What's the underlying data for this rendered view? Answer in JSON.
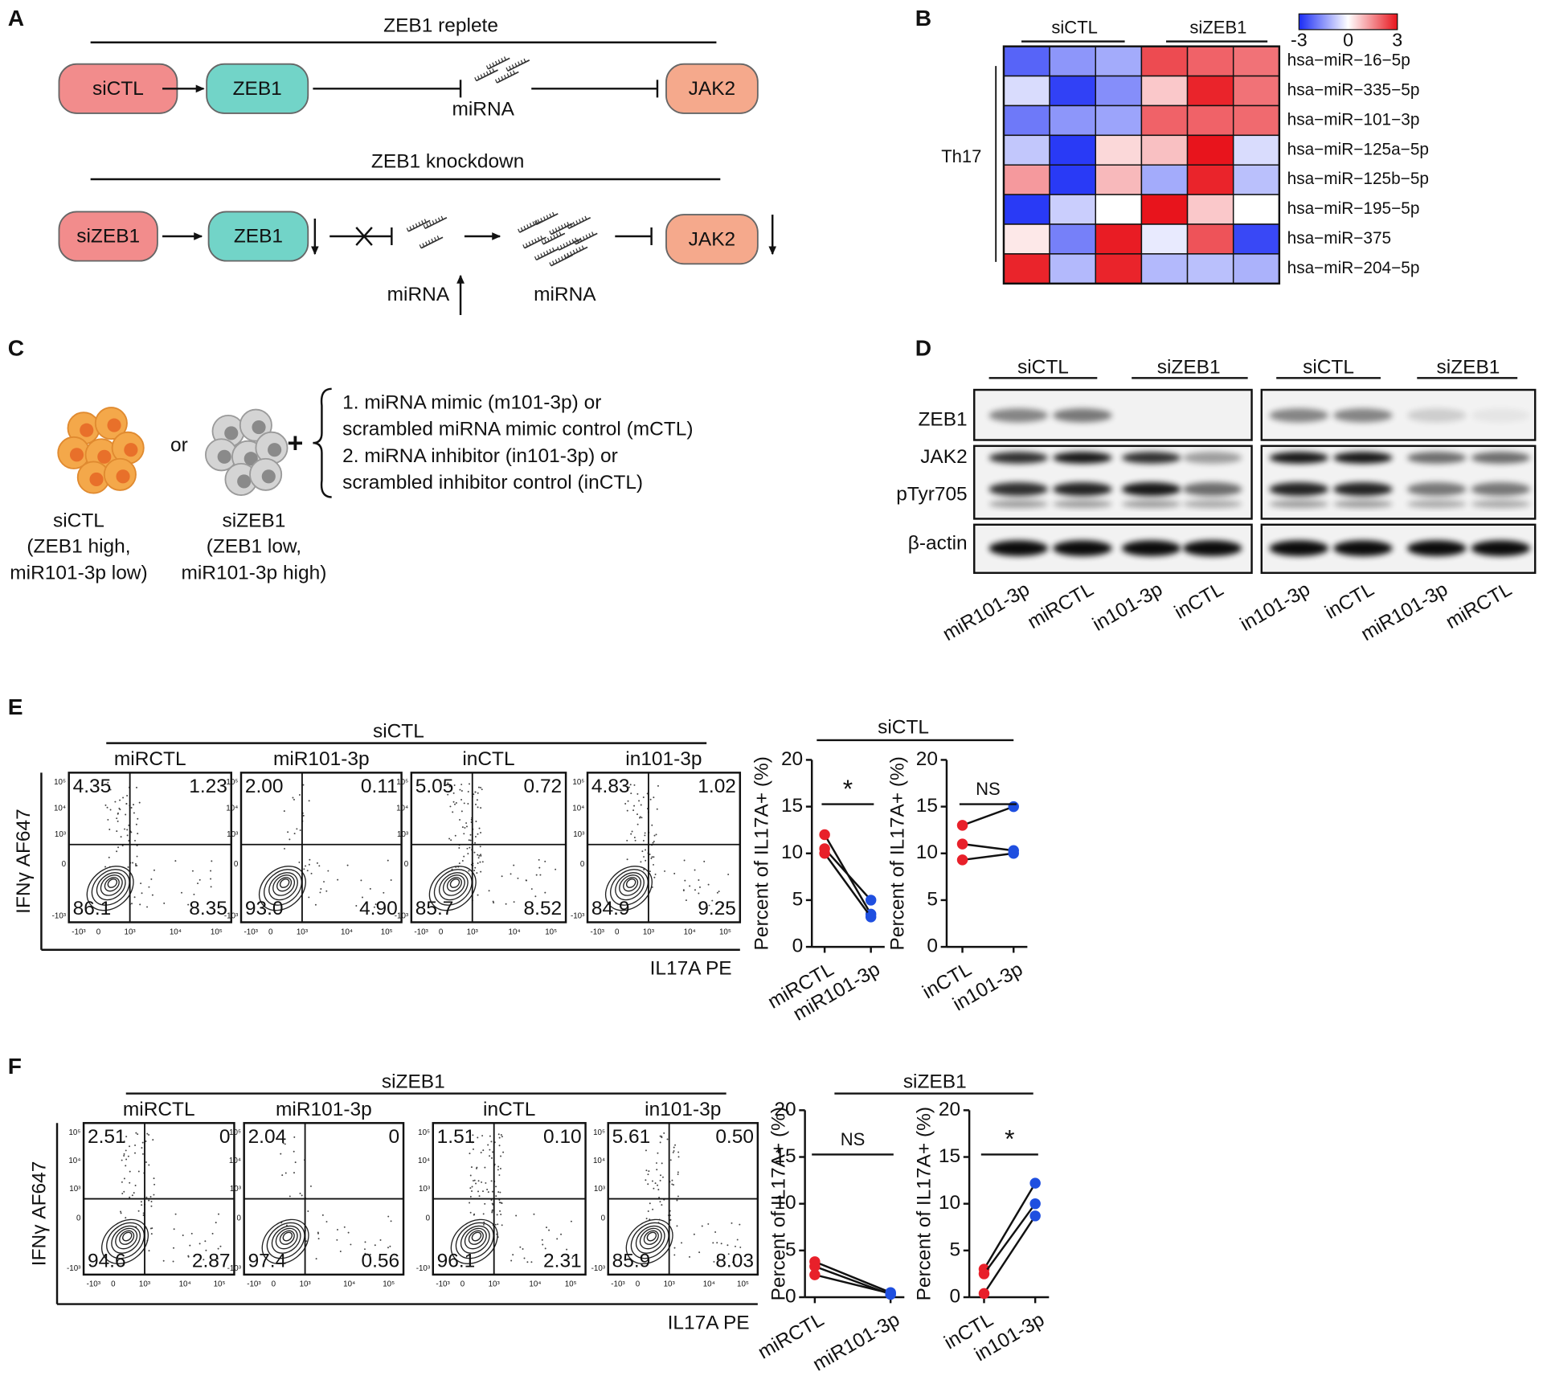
{
  "panels": {
    "a": {
      "label": "A",
      "replete_title": "ZEB1 replete",
      "knockdown_title": "ZEB1 knockdown",
      "replete_nodes": [
        "siCTL",
        "ZEB1",
        "miRNA",
        "JAK2"
      ],
      "knockdown_nodes": [
        "siZEB1",
        "ZEB1",
        "miRNA",
        "miRNA",
        "JAK2"
      ]
    },
    "b": {
      "label": "B",
      "groups": [
        "siCTL",
        "siZEB1"
      ],
      "row_group": "Th17",
      "colorbar_range": [
        -3,
        3
      ],
      "colorbar_ticks": [
        -3,
        0,
        3
      ],
      "low_color": "#1a2cf5",
      "high_color": "#e8141c",
      "rows": [
        {
          "name": "hsa−miR−16−5p",
          "color": "#e8202a"
        },
        {
          "name": "hsa−miR−335−5p",
          "color": "#e8202a"
        },
        {
          "name": "hsa−miR−101−3p",
          "color": "#e8202a"
        },
        {
          "name": "hsa−miR−125a−5p",
          "color": "#000000"
        },
        {
          "name": "hsa−miR−125b−5p",
          "color": "#000000"
        },
        {
          "name": "hsa−miR−195−5p",
          "color": "#000000"
        },
        {
          "name": "hsa−miR−375",
          "color": "#000000"
        },
        {
          "name": "hsa−miR−204−5p",
          "color": "#000000"
        }
      ],
      "values": [
        [
          -2.2,
          -1.5,
          -1.2,
          2.3,
          2.0,
          1.8
        ],
        [
          -0.5,
          -2.7,
          -1.6,
          0.7,
          2.8,
          1.8
        ],
        [
          -1.9,
          -1.5,
          -1.3,
          2.0,
          2.0,
          1.9
        ],
        [
          -0.8,
          -2.8,
          0.5,
          0.8,
          3.0,
          -0.5
        ],
        [
          1.3,
          -2.8,
          0.9,
          -1.2,
          2.8,
          -0.9
        ],
        [
          -2.8,
          -0.7,
          0,
          3.0,
          0.7,
          0
        ],
        [
          0.3,
          -1.8,
          2.9,
          -0.3,
          2.2,
          -2.6
        ],
        [
          2.8,
          -1.0,
          2.8,
          -1.0,
          -0.9,
          -1.1
        ]
      ]
    },
    "c": {
      "label": "C",
      "or": "or",
      "plus": "+",
      "treatments": [
        "1. miRNA mimic (m101-3p) or",
        "scrambled miRNA mimic control (mCTL)",
        "2. miRNA inhibitor (in101-3p) or",
        "scrambled inhibitor control (inCTL)"
      ],
      "cells": [
        {
          "name": "siCTL",
          "lines": [
            "(ZEB1 high,",
            "miR101-3p low)"
          ]
        },
        {
          "name": "siZEB1",
          "lines": [
            "(ZEB1 low,",
            "miR101-3p high)"
          ]
        }
      ]
    },
    "d": {
      "label": "D",
      "groups": [
        "siCTL",
        "siZEB1",
        "siCTL",
        "siZEB1"
      ],
      "rows": [
        "ZEB1",
        "JAK2",
        "pTyr705",
        "β-actin"
      ],
      "lanes": [
        "miR101-3p",
        "miRCTL",
        "in101-3p",
        "inCTL",
        "in101-3p",
        "inCTL",
        "miR101-3p",
        "miRCTL"
      ]
    },
    "e": {
      "label": "E",
      "group": "siCTL",
      "chart_group": "siCTL",
      "y_axis_label": "IFNγ AF647",
      "x_axis_label": "IL17A PE",
      "flow_ticks": [
        "-10³",
        "0",
        "10³",
        "10⁴",
        "10⁵"
      ],
      "plots": [
        {
          "title": "miRCTL",
          "quadrants": [
            "4.35",
            "1.23",
            "86.1",
            "8.35"
          ]
        },
        {
          "title": "miR101-3p",
          "quadrants": [
            "2.00",
            "0.11",
            "93.0",
            "4.90"
          ]
        },
        {
          "title": "inCTL",
          "quadrants": [
            "5.05",
            "0.72",
            "85.7",
            "8.52"
          ]
        },
        {
          "title": "in101-3p",
          "quadrants": [
            "4.83",
            "1.02",
            "84.9",
            "9.25"
          ]
        }
      ]
    },
    "f": {
      "label": "F",
      "group": "siZEB1",
      "chart_group": "siZEB1",
      "y_axis_label": "IFNγ AF647",
      "x_axis_label": "IL17A PE",
      "flow_ticks": [
        "-10³",
        "0",
        "10³",
        "10⁴",
        "10⁵"
      ],
      "plots": [
        {
          "title": "miRCTL",
          "quadrants": [
            "2.51",
            "0",
            "94.6",
            "2.87"
          ]
        },
        {
          "title": "miR101-3p",
          "quadrants": [
            "2.04",
            "0",
            "97.4",
            "0.56"
          ]
        },
        {
          "title": "inCTL",
          "quadrants": [
            "1.51",
            "0.10",
            "96.1",
            "2.31"
          ]
        },
        {
          "title": "in101-3p",
          "quadrants": [
            "5.61",
            "0.50",
            "85.9",
            "8.03"
          ]
        }
      ]
    }
  },
  "chart_data": [
    {
      "type": "paired-dot",
      "y_label": "Percent of IL17A+ (%)",
      "categories": [
        "miRCTL",
        "miR101-3p"
      ],
      "colors": [
        "#e8202a",
        "#1f4fe0"
      ],
      "series": [
        {
          "values": [
            12,
            3.5
          ]
        },
        {
          "values": [
            10.5,
            5
          ]
        },
        {
          "values": [
            10,
            3.2
          ]
        }
      ],
      "ylim": [
        0,
        20
      ],
      "yticks": [
        0,
        5,
        10,
        15,
        20
      ],
      "significance": "*"
    },
    {
      "type": "paired-dot",
      "y_label": "Percent of IL17A+ (%)",
      "categories": [
        "inCTL",
        "in101-3p"
      ],
      "colors": [
        "#e8202a",
        "#1f4fe0"
      ],
      "series": [
        {
          "values": [
            13,
            15
          ]
        },
        {
          "values": [
            11,
            10.3
          ]
        },
        {
          "values": [
            9.3,
            10
          ]
        }
      ],
      "ylim": [
        0,
        20
      ],
      "yticks": [
        0,
        5,
        10,
        15,
        20
      ],
      "significance": "NS"
    },
    {
      "type": "paired-dot",
      "y_label": "Percent of IL17A+ (%)",
      "categories": [
        "miRCTL",
        "miR101-3p"
      ],
      "colors": [
        "#e8202a",
        "#1f4fe0"
      ],
      "series": [
        {
          "values": [
            3.8,
            0.5
          ]
        },
        {
          "values": [
            3.3,
            0.3
          ]
        },
        {
          "values": [
            2.4,
            0.4
          ]
        }
      ],
      "ylim": [
        0,
        20
      ],
      "yticks": [
        0,
        5,
        10,
        15,
        20
      ],
      "significance": "NS"
    },
    {
      "type": "paired-dot",
      "y_label": "Percent of IL17A+ (%)",
      "categories": [
        "inCTL",
        "in101-3p"
      ],
      "colors": [
        "#e8202a",
        "#1f4fe0"
      ],
      "series": [
        {
          "values": [
            3,
            12.2
          ]
        },
        {
          "values": [
            2.5,
            10
          ]
        },
        {
          "values": [
            0.4,
            8.7
          ]
        }
      ],
      "ylim": [
        0,
        20
      ],
      "yticks": [
        0,
        5,
        10,
        15,
        20
      ],
      "significance": "*"
    }
  ]
}
